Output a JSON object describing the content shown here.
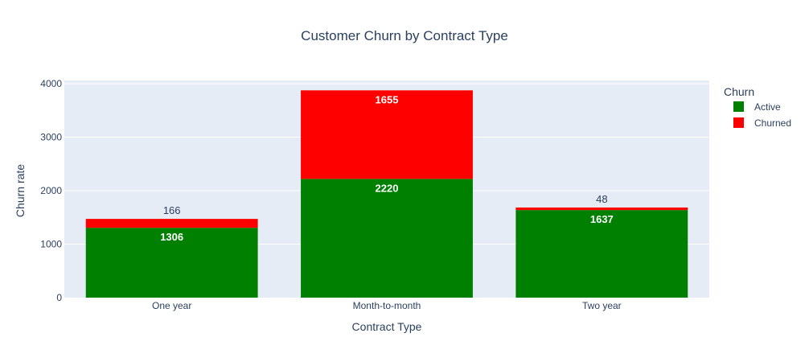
{
  "chart_data": {
    "type": "bar",
    "stacked": true,
    "title": "Customer Churn by Contract Type",
    "xlabel": "Contract Type",
    "ylabel": "Churn rate",
    "categories": [
      "One year",
      "Month-to-month",
      "Two year"
    ],
    "ylim": [
      0,
      4000
    ],
    "yticks": [
      0,
      1000,
      2000,
      3000,
      4000
    ],
    "grid": true,
    "legend": {
      "title": "Churn",
      "placement": "right"
    },
    "series": [
      {
        "name": "Active",
        "color": "#008000",
        "values": [
          1306,
          2220,
          1637
        ]
      },
      {
        "name": "Churned",
        "color": "#ff0000",
        "values": [
          166,
          1655,
          48
        ]
      }
    ]
  }
}
